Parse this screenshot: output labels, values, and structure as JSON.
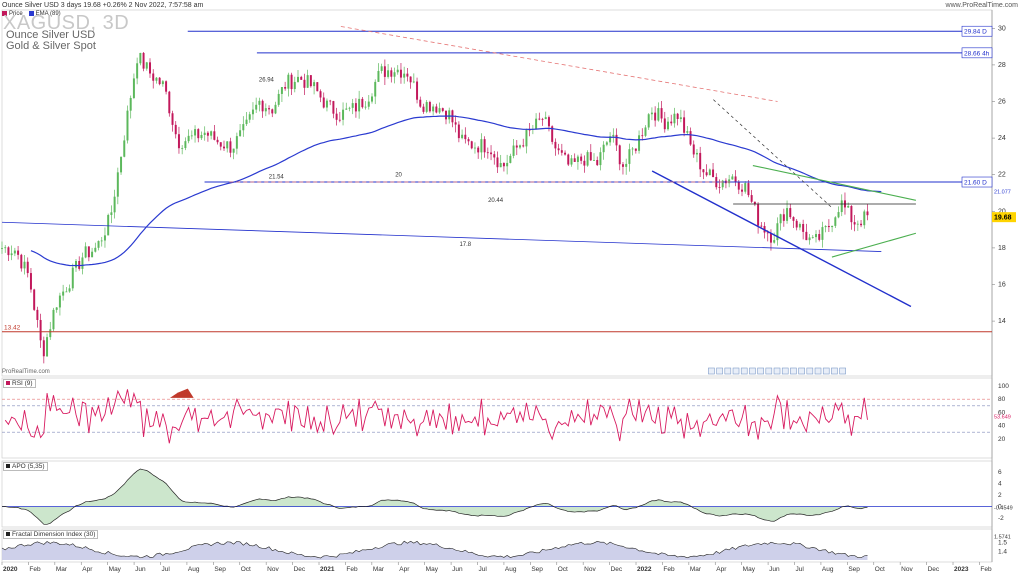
{
  "header": {
    "text": "Ounce Silver USD 3 days 19.68 +0.26% 2 Nov 2022, 7:57:58 am",
    "brand": "www.ProRealTime.com",
    "symbol": "XAGUSD, 3D",
    "name": "Ounce Silver USD",
    "category": "Gold & Silver Spot",
    "copyright": "ProRealTime.com"
  },
  "legend": {
    "price": "Price",
    "ema": "EMA (89)"
  },
  "colors": {
    "up": "#5cb85c",
    "down": "#c2185b",
    "ema": "#2a3ad0",
    "line": "#2230cc",
    "red": "#c0392b",
    "green": "#4caf50",
    "rsi": "#d81b60",
    "apo": "#222"
  },
  "time_axis": {
    "labels": [
      "2020",
      "Feb",
      "Mar",
      "Apr",
      "May",
      "Jun",
      "Jul",
      "Aug",
      "Sep",
      "Oct",
      "Nov",
      "Dec",
      "2021",
      "Feb",
      "Mar",
      "Apr",
      "May",
      "Jun",
      "Jul",
      "Aug",
      "Sep",
      "Oct",
      "Nov",
      "Dec",
      "2022",
      "Feb",
      "Mar",
      "Apr",
      "May",
      "Jun",
      "Jul",
      "Aug",
      "Sep",
      "Oct",
      "Nov",
      "Dec",
      "2023",
      "Feb"
    ],
    "bold": [
      "2020",
      "2021",
      "2022",
      "2023"
    ]
  },
  "levels": [
    {
      "value": 29.84,
      "label": "29.84 D",
      "color": "#2230cc"
    },
    {
      "value": 28.66,
      "label": "28.66 4h",
      "color": "#2230cc"
    },
    {
      "value": 21.6,
      "label": "21.60 D",
      "color": "#2230cc"
    }
  ],
  "annotations": [
    {
      "text": "21.54",
      "t": 0.27,
      "v": 21.8
    },
    {
      "text": "26.94",
      "t": 0.26,
      "v": 27.1
    },
    {
      "text": "20.44",
      "t": 0.492,
      "v": 20.5
    },
    {
      "text": "17.8",
      "t": 0.463,
      "v": 18.1
    },
    {
      "text": "20",
      "t": 0.398,
      "v": 21.9
    }
  ],
  "panes": {
    "rsi": {
      "title": "RSI (9)",
      "last_label": "53.649",
      "ticks": [
        "100",
        "80",
        "60",
        "40",
        "20"
      ]
    },
    "apo": {
      "title": "APO (5,35)",
      "last_label": "-0.4549",
      "ticks": [
        "6",
        "4",
        "2",
        "0",
        "-2"
      ]
    },
    "fdi": {
      "title": "Fractal Dimension Index (30)",
      "last_label": "1.5741",
      "ticks": [
        "1.5",
        "1.4"
      ]
    }
  },
  "chart_data": {
    "type": "candlestick",
    "title": "Ounce Silver USD 3 days",
    "x_range": [
      "Jan 2020",
      "Feb 2023"
    ],
    "ylim": [
      11,
      31
    ],
    "y_ticks": [
      14,
      16,
      18,
      20,
      22,
      24,
      26,
      28,
      30
    ],
    "last_price": 19.68,
    "last_price_label": "19.68",
    "ema89_last": 21.077,
    "ema89_last_label": "21.077",
    "support_line": {
      "value": 13.42,
      "label": "13.42"
    },
    "closes": [
      [
        "2020-01",
        18.0
      ],
      [
        "2020-02",
        17.9
      ],
      [
        "2020-03a",
        16.4
      ],
      [
        "2020-03b",
        12.2
      ],
      [
        "2020-04",
        15.0
      ],
      [
        "2020-05",
        16.2
      ],
      [
        "2020-06a",
        17.6
      ],
      [
        "2020-06b",
        18.0
      ],
      [
        "2020-07a",
        19.6
      ],
      [
        "2020-07b",
        24.0
      ],
      [
        "2020-08a",
        28.5
      ],
      [
        "2020-08b",
        27.5
      ],
      [
        "2020-09a",
        26.8
      ],
      [
        "2020-09b",
        23.8
      ],
      [
        "2020-10a",
        24.0
      ],
      [
        "2020-10b",
        24.3
      ],
      [
        "2020-11a",
        23.8
      ],
      [
        "2020-11b",
        23.5
      ],
      [
        "2020-12a",
        24.5
      ],
      [
        "2020-12b",
        26.0
      ],
      [
        "2021-01a",
        25.6
      ],
      [
        "2021-01b",
        27.0
      ],
      [
        "2021-02a",
        27.3
      ],
      [
        "2021-02b",
        26.8
      ],
      [
        "2021-03a",
        25.8
      ],
      [
        "2021-03b",
        25.3
      ],
      [
        "2021-04a",
        25.6
      ],
      [
        "2021-04b",
        26.2
      ],
      [
        "2021-05a",
        27.6
      ],
      [
        "2021-05b",
        27.8
      ],
      [
        "2021-06a",
        27.6
      ],
      [
        "2021-06b",
        25.9
      ],
      [
        "2021-07a",
        25.8
      ],
      [
        "2021-07b",
        25.4
      ],
      [
        "2021-08a",
        23.8
      ],
      [
        "2021-08b",
        23.6
      ],
      [
        "2021-09a",
        23.6
      ],
      [
        "2021-09b",
        22.4
      ],
      [
        "2021-10a",
        23.4
      ],
      [
        "2021-10b",
        24.3
      ],
      [
        "2021-11a",
        25.1
      ],
      [
        "2021-11b",
        23.3
      ],
      [
        "2021-12a",
        22.4
      ],
      [
        "2021-12b",
        22.9
      ],
      [
        "2022-01a",
        22.6
      ],
      [
        "2022-01b",
        24.2
      ],
      [
        "2022-02a",
        22.4
      ],
      [
        "2022-02b",
        23.8
      ],
      [
        "2022-03a",
        25.6
      ],
      [
        "2022-03b",
        24.9
      ],
      [
        "2022-04a",
        25.3
      ],
      [
        "2022-04b",
        23.4
      ],
      [
        "2022-05a",
        22.1
      ],
      [
        "2022-05b",
        21.6
      ],
      [
        "2022-06a",
        21.9
      ],
      [
        "2022-06b",
        21.3
      ],
      [
        "2022-07a",
        19.4
      ],
      [
        "2022-07b",
        18.6
      ],
      [
        "2022-08a",
        20.2
      ],
      [
        "2022-08b",
        19.1
      ],
      [
        "2022-09a",
        18.2
      ],
      [
        "2022-09b",
        19.0
      ],
      [
        "2022-10a",
        20.5
      ],
      [
        "2022-10b",
        19.4
      ],
      [
        "2022-11",
        19.68
      ]
    ]
  }
}
